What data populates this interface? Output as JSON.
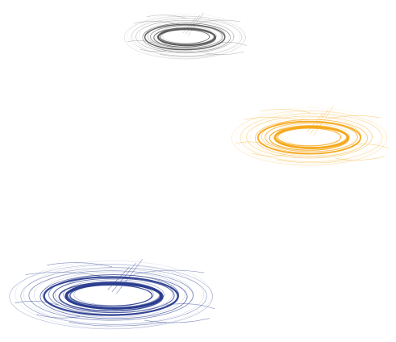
{
  "ripples": [
    {
      "id": "ripple-gray",
      "name": "gray-water-ripple",
      "color": "#5a5a5a"
    },
    {
      "id": "ripple-orange",
      "name": "orange-water-ripple",
      "color": "#f5a81c"
    },
    {
      "id": "ripple-blue",
      "name": "blue-water-ripple",
      "color": "#2b3d8f"
    }
  ]
}
